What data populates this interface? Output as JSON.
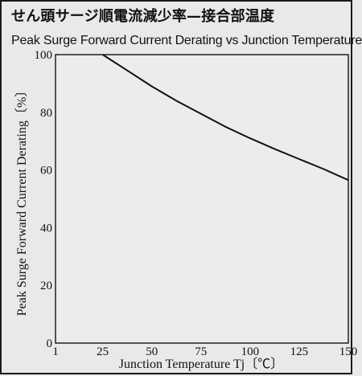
{
  "header": {
    "title_jp": "せん頭サージ順電流減少率—接合部温度",
    "title_en": "Peak Surge Forward Current Derating vs Junction Temperature"
  },
  "chart_data": {
    "type": "line",
    "title": "Peak Surge Forward Current Derating vs Junction Temperature",
    "xlabel": "Junction Temperature Tj〔℃〕",
    "ylabel": "Peak Surge Forward Current Derating〔%〕",
    "xlim": [
      1,
      150
    ],
    "ylim": [
      0,
      100
    ],
    "x_ticks": [
      1,
      25,
      50,
      75,
      100,
      125,
      150
    ],
    "x_tick_labels": [
      "1",
      "25",
      "50",
      "75",
      "100",
      "125",
      "150"
    ],
    "y_ticks": [
      0,
      20,
      40,
      60,
      80,
      100
    ],
    "y_tick_labels": [
      "0",
      "20",
      "40",
      "60",
      "80",
      "100"
    ],
    "grid": true,
    "series": [
      {
        "x": [
          25,
          37.5,
          50,
          62.5,
          75,
          87.5,
          100,
          112.5,
          125,
          137.5,
          150
        ],
        "values": [
          100,
          94.5,
          89,
          84,
          79.5,
          75,
          71,
          67.3,
          63.8,
          60.3,
          56.5
        ]
      }
    ]
  },
  "colors": {
    "background": "#e9e9e9",
    "line": "#111111",
    "grid_major": "#222222",
    "grid_minor": "#444444"
  }
}
